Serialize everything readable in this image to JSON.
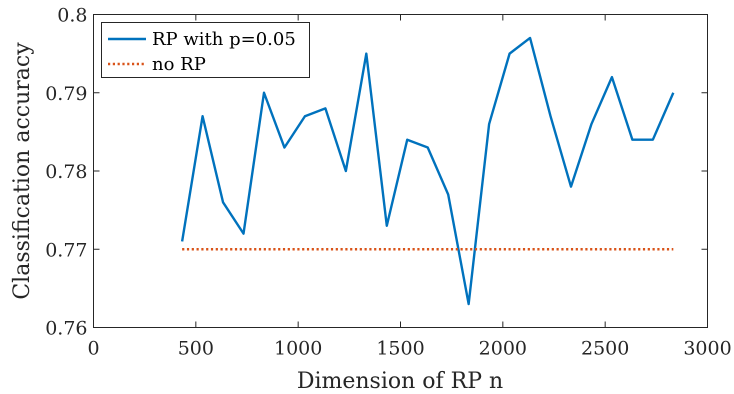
{
  "chart_data": {
    "type": "line",
    "xlabel": "Dimension of RP n",
    "ylabel": "Classification accuracy",
    "xlim": [
      0,
      3000
    ],
    "ylim": [
      0.76,
      0.8
    ],
    "xticks": [
      0,
      500,
      1000,
      1500,
      2000,
      2500,
      3000
    ],
    "yticks": [
      0.76,
      0.77,
      0.78,
      0.79,
      0.8
    ],
    "xtick_labels": [
      "0",
      "500",
      "1000",
      "1500",
      "2000",
      "2500",
      "3000"
    ],
    "ytick_labels": [
      "0.76",
      "0.77",
      "0.78",
      "0.79",
      "0.8"
    ],
    "grid": false,
    "legend_position": "top-left",
    "series": [
      {
        "name": "RP with p=0.05",
        "color": "#0072BD",
        "style": "solid",
        "x": [
          433,
          533,
          633,
          733,
          833,
          933,
          1033,
          1133,
          1233,
          1333,
          1433,
          1533,
          1633,
          1733,
          1833,
          1933,
          2033,
          2133,
          2233,
          2333,
          2433,
          2533,
          2633,
          2733,
          2833
        ],
        "y": [
          0.771,
          0.787,
          0.776,
          0.772,
          0.79,
          0.783,
          0.787,
          0.788,
          0.78,
          0.795,
          0.773,
          0.784,
          0.783,
          0.777,
          0.763,
          0.786,
          0.795,
          0.797,
          0.787,
          0.778,
          0.786,
          0.792,
          0.784,
          0.784,
          0.79
        ]
      },
      {
        "name": "no RP",
        "color": "#D95319",
        "style": "dotted",
        "x": [
          433,
          2833
        ],
        "y": [
          0.77,
          0.77
        ]
      }
    ]
  }
}
